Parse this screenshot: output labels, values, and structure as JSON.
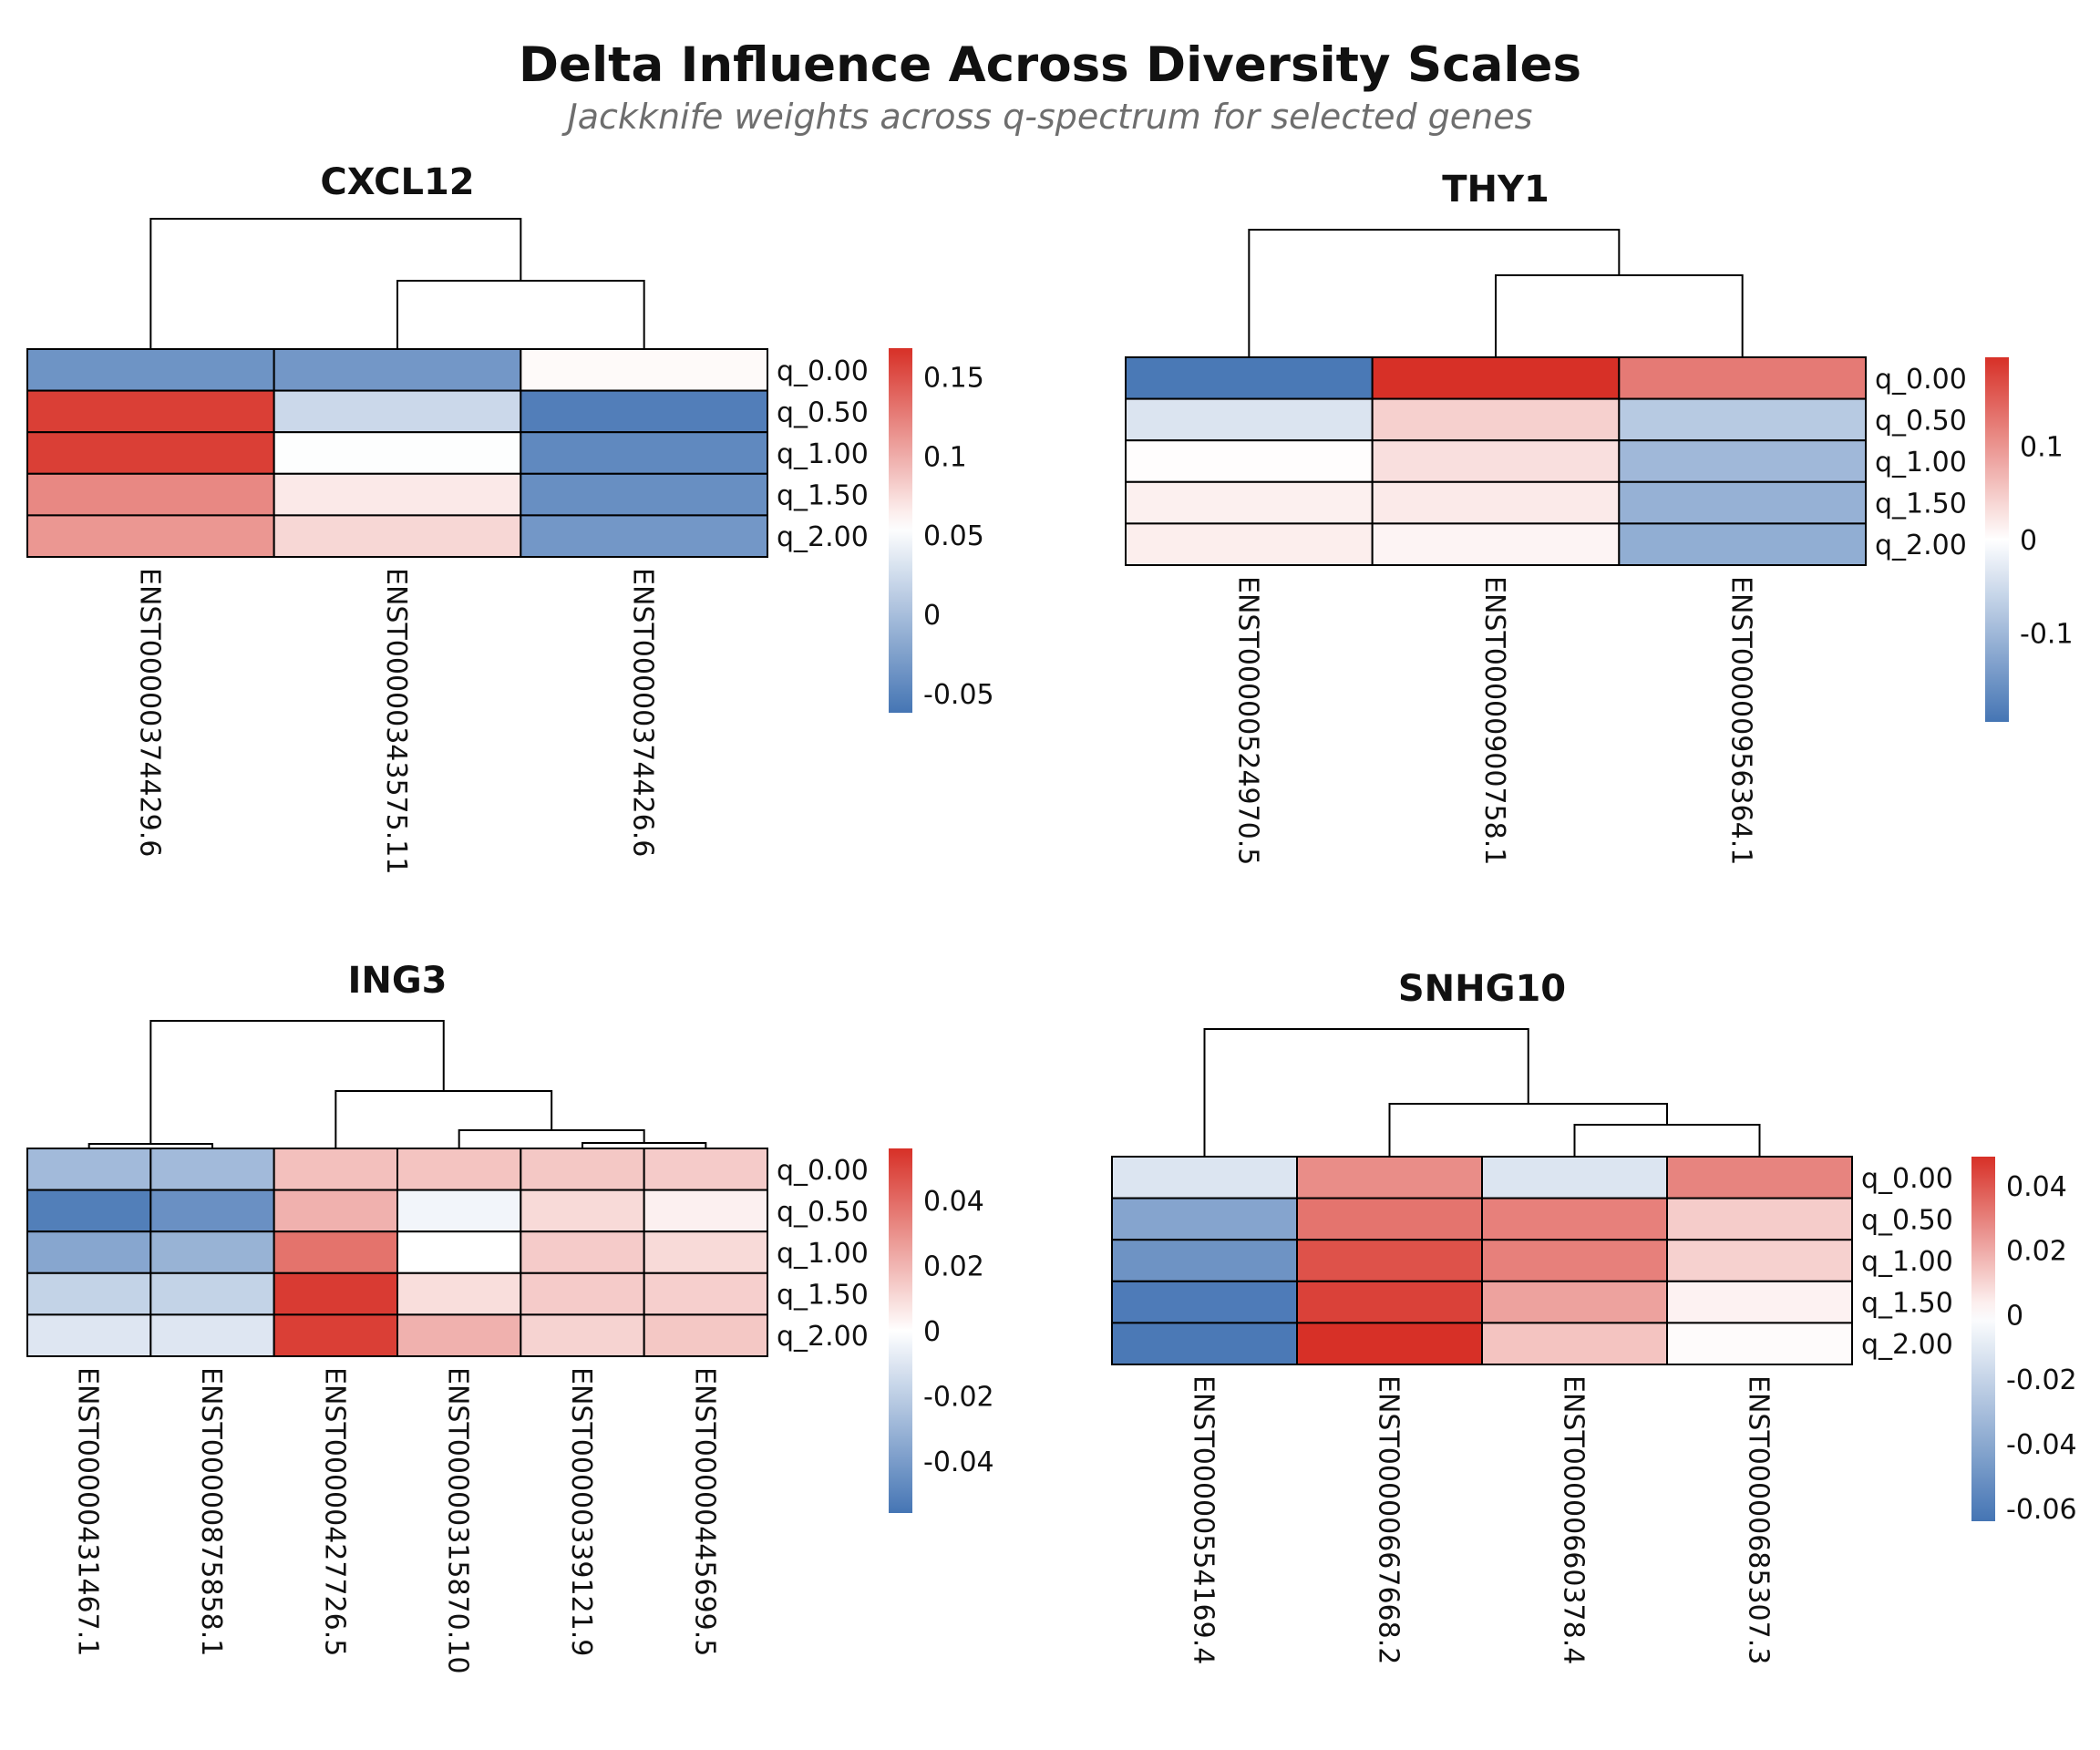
{
  "title": "Delta Influence Across Diversity Scales",
  "subtitle": "Jackknife weights across q-spectrum for selected genes",
  "colors": {
    "low": "#4575b4",
    "mid": "#ffffff",
    "high": "#d73027",
    "border": "#000000"
  },
  "chart_data": [
    {
      "type": "heatmap",
      "title": "CXCL12",
      "rows": [
        "q_0.00",
        "q_0.50",
        "q_1.00",
        "q_1.50",
        "q_2.00"
      ],
      "columns": [
        "ENST00000374429.6",
        "ENST00000343575.11",
        "ENST00000374426.6"
      ],
      "values": [
        [
          -0.036,
          -0.033,
          0.058
        ],
        [
          0.16,
          0.022,
          -0.054
        ],
        [
          0.16,
          0.054,
          -0.045
        ],
        [
          0.12,
          0.067,
          -0.04
        ],
        [
          0.112,
          0.077,
          -0.033
        ]
      ],
      "colorbar": {
        "min": -0.062,
        "max": 0.168,
        "mid": 0.055,
        "ticks": [
          0.15,
          0.1,
          0.05,
          0,
          -0.05
        ],
        "tick_labels": [
          "0.15",
          "0.1",
          "0.05",
          "0",
          "-0.05"
        ]
      },
      "dendrogram": "top"
    },
    {
      "type": "heatmap",
      "title": "THY1",
      "rows": [
        "q_0.00",
        "q_0.50",
        "q_1.00",
        "q_1.50",
        "q_2.00"
      ],
      "columns": [
        "ENST00000524970.5",
        "ENST00000900758.1",
        "ENST00000956364.1"
      ],
      "values": [
        [
          -0.19,
          0.195,
          0.125
        ],
        [
          -0.038,
          0.044,
          -0.075
        ],
        [
          0.002,
          0.03,
          -0.1
        ],
        [
          0.014,
          0.02,
          -0.11
        ],
        [
          0.016,
          0.01,
          -0.115
        ]
      ],
      "colorbar": {
        "min": -0.195,
        "max": 0.195,
        "mid": 0,
        "ticks": [
          0.1,
          0,
          -0.1
        ],
        "tick_labels": [
          "0.1",
          "0",
          "-0.1"
        ]
      },
      "dendrogram": "top"
    },
    {
      "type": "heatmap",
      "title": "ING3",
      "rows": [
        "q_0.00",
        "q_0.50",
        "q_1.00",
        "q_1.50",
        "q_2.00"
      ],
      "columns": [
        "ENST00000431467.1",
        "ENST00000875858.1",
        "ENST00000427726.5",
        "ENST00000315870.10",
        "ENST00000339121.9",
        "ENST00000445699.5"
      ],
      "values": [
        [
          -0.028,
          -0.028,
          0.017,
          0.016,
          0.015,
          0.014
        ],
        [
          -0.052,
          -0.045,
          0.021,
          -0.004,
          0.01,
          0.004
        ],
        [
          -0.036,
          -0.031,
          0.038,
          0.0,
          0.014,
          0.01
        ],
        [
          -0.018,
          -0.018,
          0.053,
          0.009,
          0.014,
          0.013
        ],
        [
          -0.01,
          -0.01,
          0.052,
          0.021,
          0.012,
          0.015
        ]
      ],
      "colorbar": {
        "min": -0.056,
        "max": 0.056,
        "mid": 0,
        "ticks": [
          0.04,
          0.02,
          0,
          -0.02,
          -0.04
        ],
        "tick_labels": [
          "0.04",
          "0.02",
          "0",
          "-0.02",
          "-0.04"
        ]
      },
      "dendrogram": "top"
    },
    {
      "type": "heatmap",
      "title": "SNHG10",
      "rows": [
        "q_0.00",
        "q_0.50",
        "q_1.00",
        "q_1.50",
        "q_2.00"
      ],
      "columns": [
        "ENST00000554169.4",
        "ENST00000667668.2",
        "ENST00000660378.4",
        "ENST00000685307.3"
      ],
      "values": [
        [
          -0.012,
          0.027,
          -0.012,
          0.029
        ],
        [
          -0.042,
          0.033,
          0.03,
          0.012
        ],
        [
          -0.05,
          0.041,
          0.03,
          0.011
        ],
        [
          -0.061,
          0.045,
          0.022,
          0.003
        ],
        [
          -0.062,
          0.049,
          0.014,
          0.001
        ]
      ],
      "colorbar": {
        "min": -0.064,
        "max": 0.049,
        "mid": 0,
        "ticks": [
          0.04,
          0.02,
          0,
          -0.02,
          -0.04,
          -0.06
        ],
        "tick_labels": [
          "0.04",
          "0.02",
          "0",
          "-0.02",
          "-0.04",
          "-0.06"
        ]
      },
      "dendrogram": "top"
    }
  ]
}
